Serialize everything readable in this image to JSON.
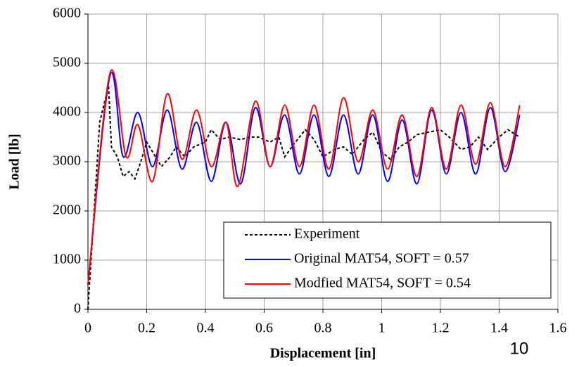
{
  "chart_data": {
    "type": "line",
    "xlabel": "Displacement [in]",
    "ylabel": "Load [lb]",
    "xlim": [
      0,
      1.6
    ],
    "xticks": [
      0,
      0.2,
      0.4,
      0.6,
      0.8,
      1,
      1.2,
      1.4,
      1.6
    ],
    "ylim": [
      0,
      6000
    ],
    "yticks": [
      0,
      1000,
      2000,
      3000,
      4000,
      5000,
      6000
    ],
    "grid": true,
    "legend": "lower right",
    "series": [
      {
        "name": "Experiment",
        "color": "#000000",
        "dash": true,
        "x": [
          0,
          0.04,
          0.07,
          0.08,
          0.1,
          0.12,
          0.14,
          0.16,
          0.18,
          0.2,
          0.22,
          0.25,
          0.28,
          0.3,
          0.33,
          0.36,
          0.4,
          0.42,
          0.45,
          0.48,
          0.52,
          0.55,
          0.58,
          0.62,
          0.65,
          0.67,
          0.7,
          0.74,
          0.77,
          0.8,
          0.84,
          0.87,
          0.9,
          0.94,
          0.97,
          1.0,
          1.03,
          1.06,
          1.09,
          1.12,
          1.16,
          1.2,
          1.23,
          1.27,
          1.3,
          1.33,
          1.36,
          1.4,
          1.43,
          1.47
        ],
        "values": [
          0,
          3800,
          4550,
          3300,
          3100,
          2700,
          2800,
          2650,
          3000,
          3400,
          3200,
          2900,
          3100,
          3300,
          3100,
          3300,
          3400,
          3650,
          3450,
          3500,
          3450,
          3500,
          3500,
          3400,
          3500,
          3100,
          3350,
          3650,
          3450,
          3100,
          3250,
          3300,
          3150,
          3450,
          3600,
          3200,
          3050,
          3300,
          3400,
          3550,
          3600,
          3650,
          3500,
          3250,
          3300,
          3500,
          3250,
          3500,
          3650,
          3500
        ]
      },
      {
        "name": "Original MAT54, SOFT = 0.57",
        "color": "#0000ff",
        "x": [
          0,
          0.075,
          0.12,
          0.17,
          0.22,
          0.27,
          0.32,
          0.37,
          0.42,
          0.47,
          0.52,
          0.57,
          0.62,
          0.67,
          0.72,
          0.77,
          0.82,
          0.87,
          0.92,
          0.97,
          1.02,
          1.07,
          1.12,
          1.17,
          1.22,
          1.27,
          1.32,
          1.37,
          1.42,
          1.47
        ],
        "values": [
          500,
          4750,
          3100,
          4000,
          2900,
          4050,
          2850,
          3800,
          2600,
          3800,
          2550,
          4100,
          2900,
          3950,
          2750,
          3950,
          2700,
          3950,
          2750,
          3950,
          2600,
          3850,
          2550,
          4050,
          2750,
          4000,
          2750,
          4100,
          2800,
          3950
        ]
      },
      {
        "name": "Modfied MAT54, SOFT = 0.54",
        "color": "#ff0000",
        "x": [
          0,
          0.075,
          0.13,
          0.17,
          0.22,
          0.27,
          0.32,
          0.37,
          0.42,
          0.47,
          0.51,
          0.57,
          0.62,
          0.67,
          0.72,
          0.77,
          0.82,
          0.87,
          0.92,
          0.97,
          1.02,
          1.07,
          1.12,
          1.17,
          1.22,
          1.27,
          1.32,
          1.37,
          1.42,
          1.47
        ],
        "values": [
          500,
          4800,
          3100,
          3750,
          2600,
          4380,
          3050,
          4050,
          2900,
          3800,
          2500,
          4230,
          2900,
          4150,
          2900,
          4150,
          2850,
          4300,
          3000,
          4050,
          2850,
          3950,
          2700,
          4100,
          2850,
          4150,
          2950,
          4200,
          2900,
          4150
        ]
      }
    ]
  },
  "slide_number": "10"
}
